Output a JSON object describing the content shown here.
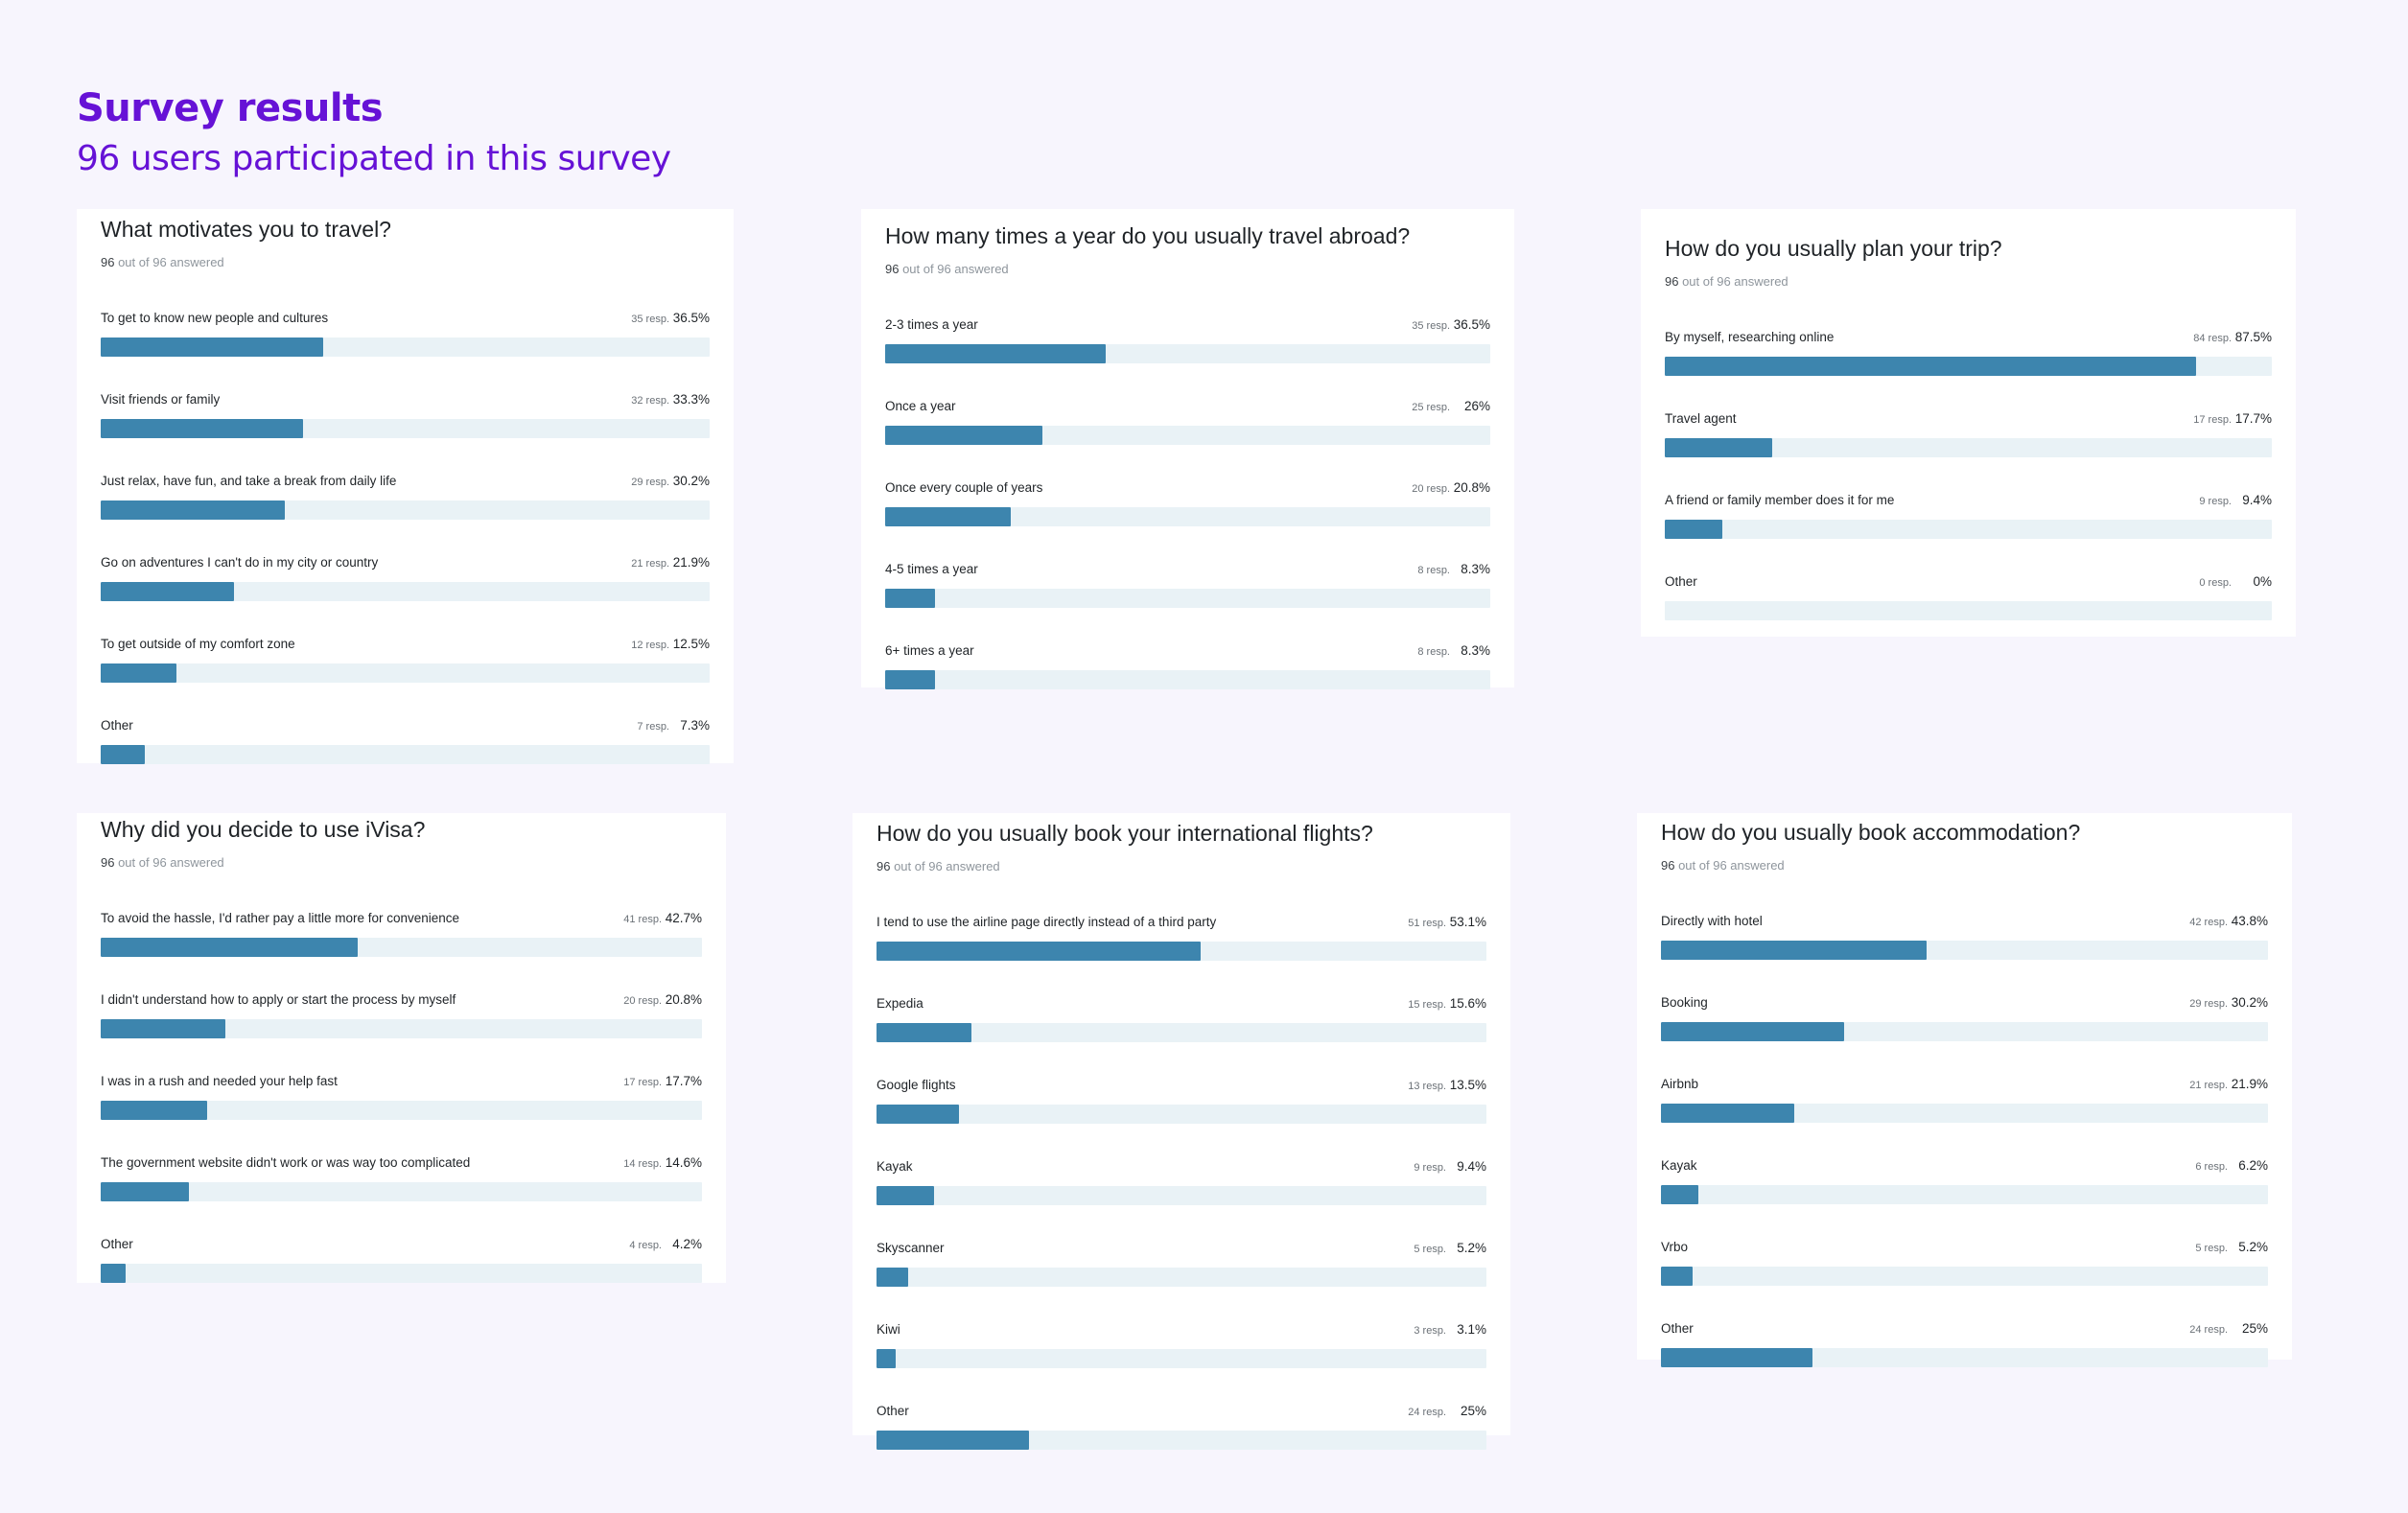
{
  "header": {
    "title": "Survey results",
    "subtitle": "96 users participated in this survey"
  },
  "colors": {
    "accent": "#6612d6",
    "bar": "#3d85ae",
    "track": "#e9f2f6",
    "background": "#f7f5fd"
  },
  "questions": [
    {
      "title": "What motivates you to travel?",
      "answered": "96",
      "answered_suffix": " out of 96 answered",
      "options": [
        {
          "label": "To get to know new people and cultures",
          "resp": "35 resp.",
          "pct": "36.5%",
          "value": 36.5
        },
        {
          "label": "Visit friends or family",
          "resp": "32 resp.",
          "pct": "33.3%",
          "value": 33.3
        },
        {
          "label": "Just relax, have fun, and take a break from daily life",
          "resp": "29 resp.",
          "pct": "30.2%",
          "value": 30.2
        },
        {
          "label": "Go on adventures I can't do in my city or country",
          "resp": "21 resp.",
          "pct": "21.9%",
          "value": 21.9
        },
        {
          "label": "To get outside of my comfort zone",
          "resp": "12 resp.",
          "pct": "12.5%",
          "value": 12.5
        },
        {
          "label": "Other",
          "resp": "7 resp.",
          "pct": "7.3%",
          "value": 7.3
        }
      ]
    },
    {
      "title": "How many times a year do you usually travel abroad?",
      "answered": "96",
      "answered_suffix": " out of 96 answered",
      "options": [
        {
          "label": "2-3 times a year",
          "resp": "35 resp.",
          "pct": "36.5%",
          "value": 36.5
        },
        {
          "label": "Once a year",
          "resp": "25 resp.",
          "pct": "26%",
          "value": 26
        },
        {
          "label": "Once every couple of years",
          "resp": "20 resp.",
          "pct": "20.8%",
          "value": 20.8
        },
        {
          "label": "4-5 times a year",
          "resp": "8 resp.",
          "pct": "8.3%",
          "value": 8.3
        },
        {
          "label": "6+ times a year",
          "resp": "8 resp.",
          "pct": "8.3%",
          "value": 8.3
        }
      ]
    },
    {
      "title": "How do you usually plan your trip?",
      "answered": "96",
      "answered_suffix": " out of 96 answered",
      "options": [
        {
          "label": "By myself, researching online",
          "resp": "84 resp.",
          "pct": "87.5%",
          "value": 87.5
        },
        {
          "label": "Travel agent",
          "resp": "17 resp.",
          "pct": "17.7%",
          "value": 17.7
        },
        {
          "label": "A friend or family member does it for me",
          "resp": "9 resp.",
          "pct": "9.4%",
          "value": 9.4
        },
        {
          "label": "Other",
          "resp": "0 resp.",
          "pct": "0%",
          "value": 0
        }
      ]
    },
    {
      "title": "Why did you decide to use iVisa?",
      "answered": "96",
      "answered_suffix": " out of 96 answered",
      "options": [
        {
          "label": "To avoid the hassle, I'd rather pay a little more for convenience",
          "resp": "41 resp.",
          "pct": "42.7%",
          "value": 42.7
        },
        {
          "label": "I didn't understand how to apply or start the process by myself",
          "resp": "20 resp.",
          "pct": "20.8%",
          "value": 20.8
        },
        {
          "label": "I was in a rush and needed your help fast",
          "resp": "17 resp.",
          "pct": "17.7%",
          "value": 17.7
        },
        {
          "label": "The government website didn't work or was way too complicated",
          "resp": "14 resp.",
          "pct": "14.6%",
          "value": 14.6
        },
        {
          "label": "Other",
          "resp": "4 resp.",
          "pct": "4.2%",
          "value": 4.2
        }
      ]
    },
    {
      "title": "How do you usually book your international flights?",
      "answered": "96",
      "answered_suffix": " out of 96 answered",
      "options": [
        {
          "label": "I tend to use the airline page directly instead of a third party",
          "resp": "51 resp.",
          "pct": "53.1%",
          "value": 53.1
        },
        {
          "label": "Expedia",
          "resp": "15 resp.",
          "pct": "15.6%",
          "value": 15.6
        },
        {
          "label": "Google flights",
          "resp": "13 resp.",
          "pct": "13.5%",
          "value": 13.5
        },
        {
          "label": "Kayak",
          "resp": "9 resp.",
          "pct": "9.4%",
          "value": 9.4
        },
        {
          "label": "Skyscanner",
          "resp": "5 resp.",
          "pct": "5.2%",
          "value": 5.2
        },
        {
          "label": "Kiwi",
          "resp": "3 resp.",
          "pct": "3.1%",
          "value": 3.1
        },
        {
          "label": "Other",
          "resp": "24 resp.",
          "pct": "25%",
          "value": 25
        }
      ]
    },
    {
      "title": "How do you usually book accommodation?",
      "answered": "96",
      "answered_suffix": " out of 96 answered",
      "options": [
        {
          "label": "Directly with hotel",
          "resp": "42 resp.",
          "pct": "43.8%",
          "value": 43.8
        },
        {
          "label": "Booking",
          "resp": "29 resp.",
          "pct": "30.2%",
          "value": 30.2
        },
        {
          "label": "Airbnb",
          "resp": "21 resp.",
          "pct": "21.9%",
          "value": 21.9
        },
        {
          "label": "Kayak",
          "resp": "6 resp.",
          "pct": "6.2%",
          "value": 6.2
        },
        {
          "label": "Vrbo",
          "resp": "5 resp.",
          "pct": "5.2%",
          "value": 5.2
        },
        {
          "label": "Other",
          "resp": "24 resp.",
          "pct": "25%",
          "value": 25
        }
      ]
    }
  ]
}
